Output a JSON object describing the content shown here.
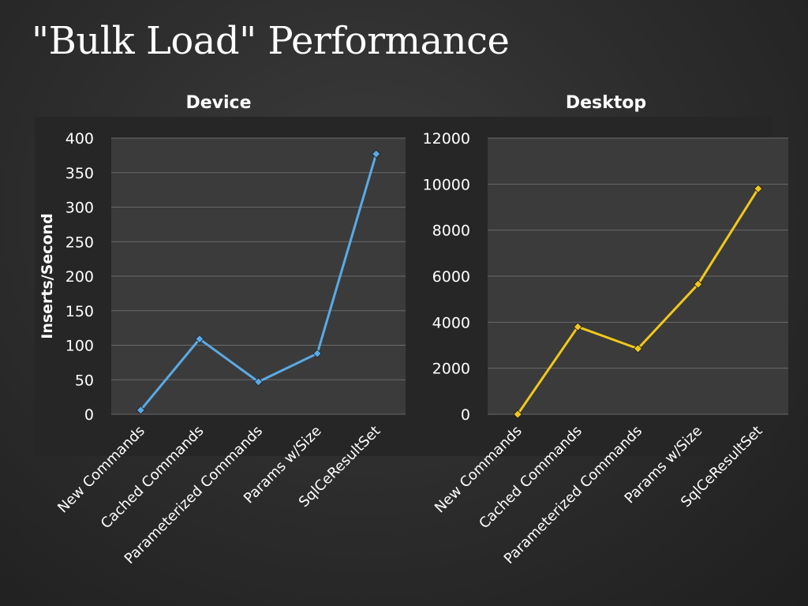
{
  "slide": {
    "title": "\"Bulk Load\" Performance"
  },
  "chart_data": [
    {
      "type": "line",
      "title": "Device",
      "ylabel": "Inserts/Second",
      "xlabel": "",
      "categories": [
        "New Commands",
        "Cached Commands",
        "Parameterized Commands",
        "Params w/Size",
        "SqlCeResultSet"
      ],
      "series": [
        {
          "values": [
            6,
            109,
            47,
            88,
            377
          ],
          "color": "#5aaae6"
        }
      ],
      "ylim": [
        0,
        400
      ],
      "yticks": [
        0,
        50,
        100,
        150,
        200,
        250,
        300,
        350,
        400
      ],
      "grid": true,
      "legend": "none"
    },
    {
      "type": "line",
      "title": "Desktop",
      "ylabel": "",
      "xlabel": "",
      "categories": [
        "New Commands",
        "Cached Commands",
        "Parameterized Commands",
        "Params w/Size",
        "SqlCeResultSet"
      ],
      "series": [
        {
          "values": [
            0,
            3800,
            2850,
            5650,
            9800
          ],
          "color": "#f2c81a"
        }
      ],
      "ylim": [
        0,
        12000
      ],
      "yticks": [
        0,
        2000,
        4000,
        6000,
        8000,
        10000,
        12000
      ],
      "grid": true,
      "legend": "none"
    }
  ]
}
